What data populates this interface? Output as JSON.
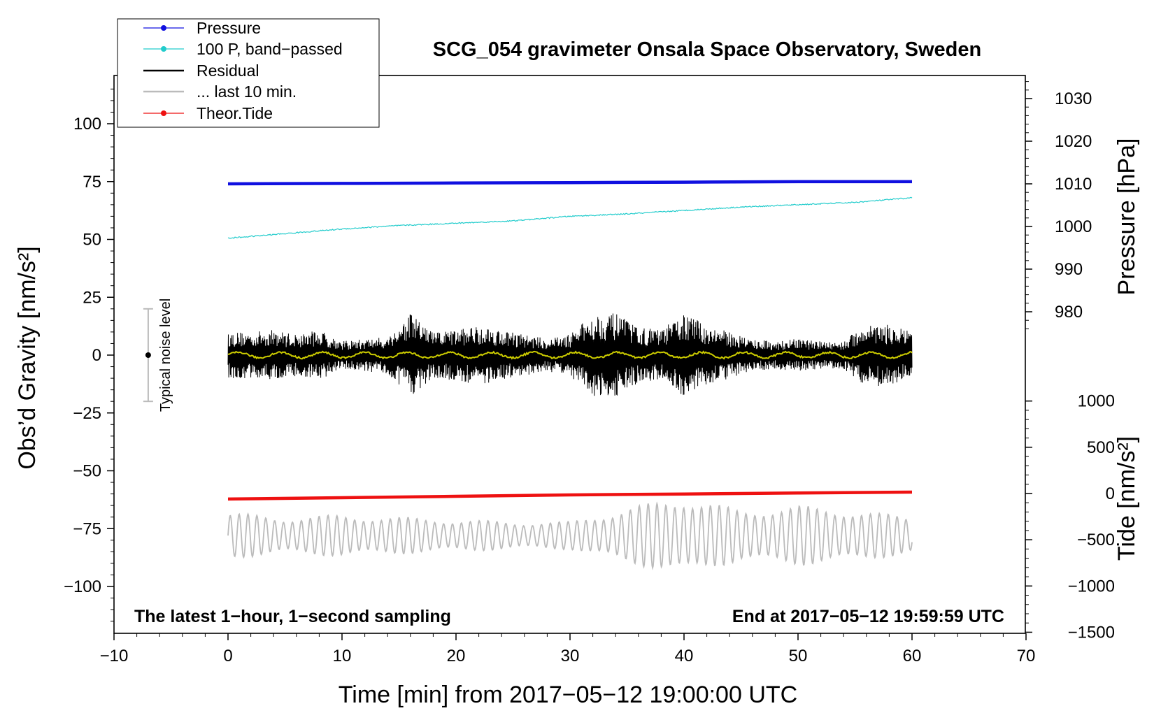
{
  "chart_data": {
    "type": "line",
    "title": "SCG_054 gravimeter Onsala Space Observatory, Sweden",
    "xlabel": "Time [min] from 2017−05−12 19:00:00 UTC",
    "ylabel_left": "Obs’d Gravity [nm/s²]",
    "ylabel_pressure": "Pressure [hPa]",
    "ylabel_tide": "Tide [nm/s²]",
    "xlim": [
      -10,
      70
    ],
    "ylim_left": [
      -120,
      120
    ],
    "x_ticks": [
      -10,
      0,
      10,
      20,
      30,
      40,
      50,
      60,
      70
    ],
    "x_tick_labels": [
      "−10",
      "0",
      "10",
      "20",
      "30",
      "40",
      "50",
      "60",
      "70"
    ],
    "left_ticks": [
      100,
      75,
      50,
      25,
      0,
      -25,
      -50,
      -75,
      -100
    ],
    "left_tick_labels": [
      "100",
      "75",
      "50",
      "25",
      "0",
      "−25",
      "−50",
      "−75",
      "−100"
    ],
    "pressure_ticks": [
      1030,
      1020,
      1010,
      1000,
      990,
      980
    ],
    "pressure_tick_labels": [
      "1030",
      "1020",
      "1010",
      "1000",
      "990",
      "980"
    ],
    "tide_ticks": [
      1000,
      500,
      0,
      -500,
      -1000,
      -1500
    ],
    "tide_tick_labels": [
      "1000",
      "500",
      "0",
      "−500",
      "−1000",
      "−1500"
    ],
    "series": [
      {
        "name": "Pressure",
        "axis": "pressure",
        "color": "#1010e0",
        "x": [
          0,
          10,
          20,
          30,
          40,
          50,
          60
        ],
        "y": [
          1010.0,
          1010.1,
          1010.2,
          1010.3,
          1010.4,
          1010.5,
          1010.5
        ]
      },
      {
        "name": "100 P, band−passed",
        "axis": "left",
        "color": "#22cccc",
        "x": [
          0,
          5,
          10,
          15,
          20,
          25,
          30,
          35,
          40,
          45,
          50,
          55,
          60
        ],
        "y": [
          50.5,
          52.5,
          54.5,
          56,
          57,
          58,
          60,
          61,
          62.5,
          64,
          65,
          66,
          68
        ]
      },
      {
        "name": "Residual",
        "axis": "left",
        "color": "#000000",
        "x": [
          0,
          2,
          4,
          6,
          8,
          10,
          12,
          14,
          16,
          18,
          20,
          22,
          24,
          26,
          28,
          30,
          32,
          34,
          36,
          38,
          40,
          42,
          44,
          46,
          48,
          50,
          52,
          54,
          56,
          58,
          60
        ],
        "amplitude": [
          10,
          10,
          11,
          9,
          11,
          6,
          7,
          8,
          18,
          10,
          11,
          13,
          11,
          9,
          7,
          9,
          18,
          18,
          12,
          11,
          18,
          13,
          10,
          7,
          6,
          7,
          6,
          6,
          14,
          13,
          10
        ]
      },
      {
        "name": "... last 10 min.",
        "axis": "left",
        "color": "#bbbbbb",
        "x": [
          0,
          5,
          10,
          15,
          20,
          25,
          30,
          35,
          40,
          45,
          50,
          55,
          60
        ],
        "amplitude": [
          10,
          8,
          9,
          8,
          7,
          6,
          6,
          12,
          17,
          11,
          13,
          11,
          8
        ]
      },
      {
        "name": "Theor.Tide",
        "axis": "tide",
        "color": "#ee1111",
        "x": [
          0,
          10,
          20,
          30,
          40,
          50,
          60
        ],
        "y": [
          -60,
          -45,
          -30,
          -15,
          -5,
          5,
          15
        ]
      }
    ],
    "noise_bar": {
      "x": -7,
      "y": 0,
      "range": [
        -20,
        20
      ],
      "label": "Typical noise level"
    },
    "annotations": {
      "bottom_left": "The latest 1−hour, 1−second sampling",
      "bottom_right": "End at 2017−05−12 19:59:59 UTC"
    },
    "legend_placement": "top-left",
    "grid": false
  },
  "legend": {
    "items": [
      {
        "label": "Pressure",
        "color": "#1010e0",
        "style": "line-dot"
      },
      {
        "label": "100 P, band−passed",
        "color": "#22cccc",
        "style": "line-dot"
      },
      {
        "label": "Residual",
        "color": "#000000",
        "style": "line"
      },
      {
        "label": "... last 10 min.",
        "color": "#bbbbbb",
        "style": "line"
      },
      {
        "label": "Theor.Tide",
        "color": "#ee1111",
        "style": "line-dot"
      }
    ]
  },
  "colors": {
    "pressure": "#1010e0",
    "bandpassed": "#22cccc",
    "residual": "#000000",
    "residual_mean": "#cccc00",
    "last10": "#bbbbbb",
    "tide": "#ee1111"
  }
}
